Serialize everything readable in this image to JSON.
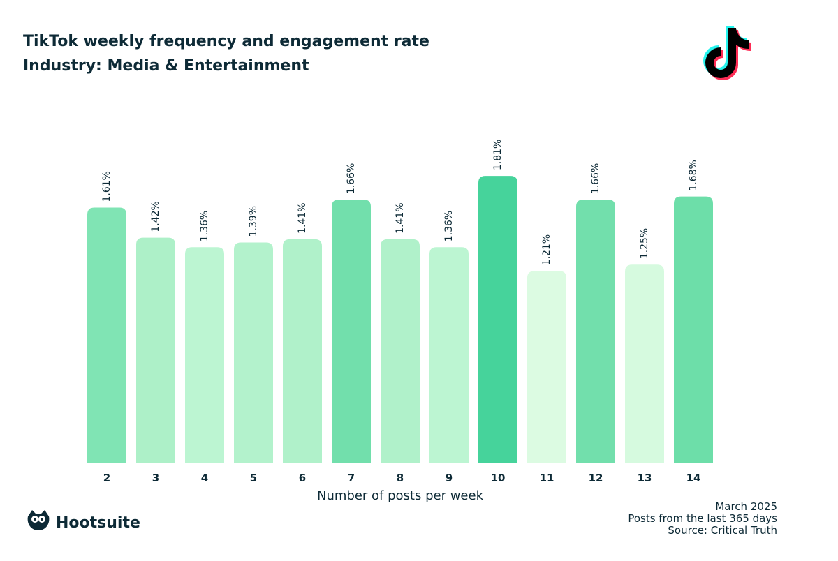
{
  "chart_data": {
    "type": "bar",
    "title": "TikTok weekly frequency and engagement rate",
    "subtitle": "Industry: Media & Entertainment",
    "x_label": "Number of posts per week",
    "categories": [
      "2",
      "3",
      "4",
      "5",
      "6",
      "7",
      "8",
      "9",
      "10",
      "11",
      "12",
      "13",
      "14"
    ],
    "values": [
      1.61,
      1.42,
      1.36,
      1.39,
      1.41,
      1.66,
      1.41,
      1.36,
      1.81,
      1.21,
      1.66,
      1.25,
      1.68
    ],
    "value_labels": [
      "1.61%",
      "1.42%",
      "1.36%",
      "1.39%",
      "1.41%",
      "1.66%",
      "1.41%",
      "1.36%",
      "1.81%",
      "1.21%",
      "1.66%",
      "1.25%",
      "1.68%"
    ],
    "colors": [
      "#80e4b4",
      "#adf0c8",
      "#bcf5d2",
      "#b3f2cc",
      "#b0f1ca",
      "#72dfac",
      "#b0f1ca",
      "#bcf5d2",
      "#46d39b",
      "#dcfbe2",
      "#72dfac",
      "#d6fadf",
      "#6ddea9"
    ],
    "notes": [
      "March 2025",
      "Posts from the last 365 days",
      "Source: Critical Truth"
    ],
    "brand": "Hootsuite"
  }
}
